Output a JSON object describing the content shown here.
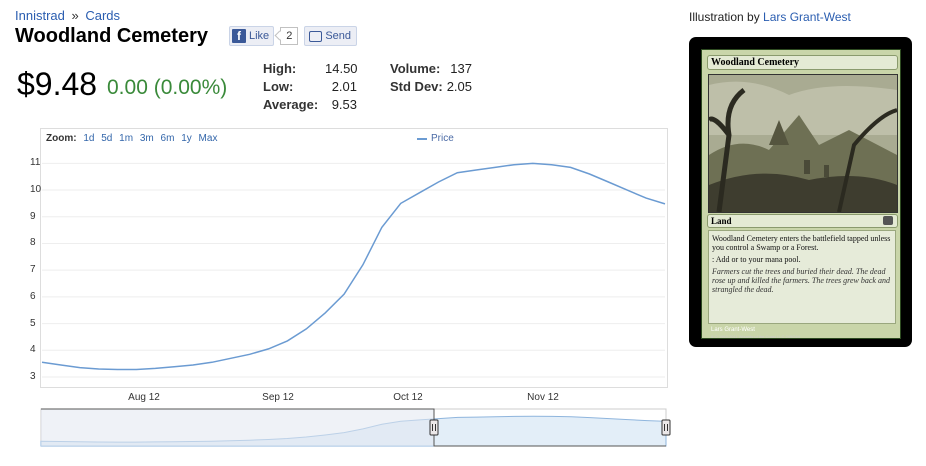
{
  "breadcrumb": {
    "set": "Innistrad",
    "sep": "»",
    "section": "Cards"
  },
  "card_title": "Woodland Cemetery",
  "social": {
    "like_label": "Like",
    "like_count": "2",
    "send_label": "Send"
  },
  "price": {
    "current": "$9.48",
    "change": "0.00 (0.00%)"
  },
  "stats": {
    "high_label": "High:",
    "high": "14.50",
    "low_label": "Low:",
    "low": "2.01",
    "avg_label": "Average:",
    "avg": "9.53",
    "volume_label": "Volume:",
    "volume": "137",
    "stddev_label": "Std Dev:",
    "stddev": "2.05"
  },
  "zoom": {
    "label": "Zoom:",
    "options": [
      "1d",
      "5d",
      "1m",
      "3m",
      "6m",
      "1y",
      "Max"
    ]
  },
  "illustration": {
    "prefix": "Illustration by",
    "artist": "Lars Grant-West"
  },
  "card_image": {
    "name": "Woodland Cemetery",
    "type": "Land",
    "rules": "Woodland Cemetery enters the battlefield tapped unless you control a Swamp or a Forest.",
    "mana": ": Add  or  to your mana pool.",
    "flavor": "Farmers cut the trees and buried their dead. The dead rose up and killed the farmers. The trees grew back and strangled the dead.",
    "artist_line": "Lars Grant-West",
    "copyright": "& © 1993-2011 Wizards of the Coast LLC  249/264"
  },
  "colors": {
    "line": "#6b9bd2",
    "change": "#3a8a3a",
    "link": "#2a5db0"
  },
  "chart_data": {
    "type": "line",
    "series": [
      {
        "name": "Price",
        "values": [
          3.55,
          3.45,
          3.35,
          3.3,
          3.28,
          3.28,
          3.32,
          3.38,
          3.45,
          3.55,
          3.7,
          3.85,
          4.05,
          4.35,
          4.8,
          5.4,
          6.1,
          7.2,
          8.6,
          9.5,
          9.9,
          10.3,
          10.65,
          10.75,
          10.85,
          10.95,
          11.0,
          10.95,
          10.85,
          10.6,
          10.3,
          10.0,
          9.7,
          9.48
        ]
      }
    ],
    "x_ticks": [
      "Aug 12",
      "Sep 12",
      "Oct 12",
      "Nov 12"
    ],
    "y_ticks": [
      3,
      4,
      5,
      6,
      7,
      8,
      9,
      10,
      11
    ],
    "ylim": [
      2.7,
      11.5
    ],
    "grid": true,
    "legend": "top-center"
  }
}
